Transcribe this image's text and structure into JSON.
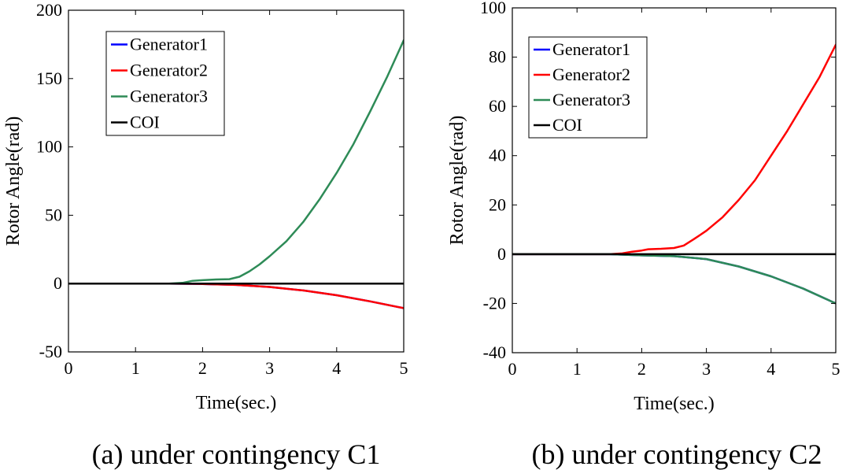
{
  "chart_data": [
    {
      "type": "line",
      "caption": "(a) under contingency C1",
      "xlabel": "Time(sec.)",
      "ylabel": "Rotor Angle(rad)",
      "xlim": [
        0,
        5
      ],
      "ylim": [
        -50,
        200
      ],
      "xticks": [
        0,
        1,
        2,
        3,
        4,
        5
      ],
      "yticks": [
        -50,
        0,
        50,
        100,
        150,
        200
      ],
      "legend_position": "top-left",
      "series": [
        {
          "name": "Generator1",
          "color": "#0000ff",
          "x": [
            0,
            1.5,
            2,
            2.5,
            3,
            3.5,
            4,
            4.5,
            5
          ],
          "y": [
            0,
            0,
            -0.3,
            -1,
            -2.5,
            -5,
            -8.5,
            -13,
            -18
          ]
        },
        {
          "name": "Generator2",
          "color": "#ff0000",
          "x": [
            0,
            1.5,
            2,
            2.5,
            3,
            3.5,
            4,
            4.5,
            5
          ],
          "y": [
            0,
            0,
            -0.3,
            -1,
            -2.5,
            -5,
            -8.5,
            -13,
            -18
          ]
        },
        {
          "name": "Generator3",
          "color": "#2e8b57",
          "x": [
            0,
            1.5,
            1.7,
            1.85,
            2.0,
            2.2,
            2.4,
            2.55,
            2.7,
            2.85,
            3.0,
            3.25,
            3.5,
            3.75,
            4.0,
            4.25,
            4.5,
            4.75,
            5.0
          ],
          "y": [
            0,
            0,
            0.5,
            2,
            2.5,
            3,
            3.2,
            5,
            9,
            14,
            20,
            31,
            45,
            62,
            81,
            102,
            126,
            151,
            178
          ]
        },
        {
          "name": "COI",
          "color": "#000000",
          "x": [
            0,
            5
          ],
          "y": [
            0,
            0
          ]
        }
      ]
    },
    {
      "type": "line",
      "caption": "(b) under contingency C2",
      "xlabel": "Time(sec.)",
      "ylabel": "Rotor Angle(rad)",
      "xlim": [
        0,
        5
      ],
      "ylim": [
        -40,
        100
      ],
      "xticks": [
        0,
        1,
        2,
        3,
        4,
        5
      ],
      "yticks": [
        -40,
        -20,
        0,
        20,
        40,
        60,
        80,
        100
      ],
      "legend_position": "top-left",
      "series": [
        {
          "name": "Generator1",
          "color": "#0000ff",
          "x": [
            0,
            1.5,
            2,
            2.5,
            3,
            3.5,
            4,
            4.5,
            5
          ],
          "y": [
            0,
            0,
            -0.5,
            -0.8,
            -2,
            -5,
            -9,
            -14,
            -20
          ]
        },
        {
          "name": "Generator2",
          "color": "#ff0000",
          "x": [
            0,
            1.5,
            1.7,
            1.85,
            2.0,
            2.1,
            2.3,
            2.5,
            2.65,
            2.8,
            3.0,
            3.25,
            3.5,
            3.75,
            4.0,
            4.25,
            4.5,
            4.75,
            5.0
          ],
          "y": [
            0,
            0,
            0.3,
            1,
            1.5,
            2,
            2.2,
            2.5,
            3.5,
            6,
            9.5,
            15,
            22,
            30,
            40,
            50,
            61,
            72,
            85
          ]
        },
        {
          "name": "Generator3",
          "color": "#2e8b57",
          "x": [
            0,
            1.5,
            2,
            2.5,
            3,
            3.5,
            4,
            4.5,
            5
          ],
          "y": [
            0,
            0,
            -0.5,
            -0.8,
            -2,
            -5,
            -9,
            -14,
            -20
          ]
        },
        {
          "name": "COI",
          "color": "#000000",
          "x": [
            0,
            5
          ],
          "y": [
            0,
            0
          ]
        }
      ]
    }
  ]
}
